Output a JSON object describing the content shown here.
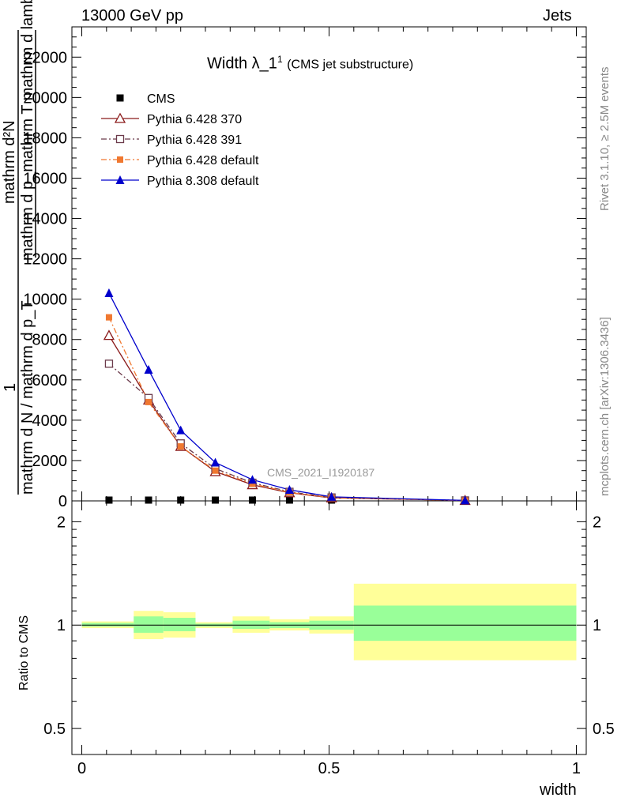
{
  "header": {
    "left": "13000 GeV pp",
    "right": "Jets"
  },
  "side_labels": {
    "rivet": "Rivet 3.1.10, ≥ 2.5M events",
    "mcplots": "mcplots.cern.ch [arXiv:1306.3436]"
  },
  "chart_data": [
    {
      "type": "line",
      "title_main": "Width λ_1",
      "title_sup": "1",
      "title_sub": "(CMS jet substructure)",
      "watermark": "CMS_2021_I1920187",
      "ylabel_numerator": "mathrm d²N",
      "ylabel_denominator": "mathrm d p_mathrm T mathrm d lambda",
      "ylabel_one": "1",
      "ylabel_frac": "mathrm d N / mathrm d p_T",
      "xlim": [
        -0.02,
        1.02
      ],
      "ylim": [
        0,
        23500
      ],
      "yticks": [
        0,
        2000,
        4000,
        6000,
        8000,
        10000,
        12000,
        14000,
        16000,
        18000,
        20000,
        22000
      ],
      "ytick_labels": [
        "0",
        "2000",
        "4000",
        "6000",
        "8000",
        "10000",
        "12000",
        "14000",
        "16000",
        "18000",
        "20000",
        "22000"
      ],
      "legend_position": "top-left",
      "series": [
        {
          "name": "CMS",
          "color": "#000000",
          "marker": "square-filled",
          "x": [
            0.055,
            0.135,
            0.2,
            0.27,
            0.345,
            0.42,
            0.505,
            0.775
          ],
          "y": [
            0,
            0,
            0,
            0,
            0,
            0,
            0,
            0
          ]
        },
        {
          "name": "Pythia 6.428 370",
          "color": "#8b1a1a",
          "marker": "triangle-open",
          "dash": "solid",
          "x": [
            0.055,
            0.135,
            0.2,
            0.27,
            0.345,
            0.42,
            0.505,
            0.775
          ],
          "y": [
            8200,
            5000,
            2700,
            1450,
            800,
            400,
            150,
            20
          ]
        },
        {
          "name": "Pythia 6.428 391",
          "color": "#6b3a4a",
          "marker": "square-open",
          "dash": "dashdot",
          "x": [
            0.055,
            0.135,
            0.2,
            0.27,
            0.345,
            0.42,
            0.505,
            0.775
          ],
          "y": [
            6800,
            5100,
            2850,
            1600,
            900,
            450,
            170,
            22
          ]
        },
        {
          "name": "Pythia 6.428 default",
          "color": "#f07830",
          "marker": "square-filled-small",
          "dash": "dashdot",
          "x": [
            0.055,
            0.135,
            0.2,
            0.27,
            0.345,
            0.42,
            0.505,
            0.775
          ],
          "y": [
            9100,
            4900,
            2700,
            1500,
            850,
            420,
            160,
            18
          ]
        },
        {
          "name": "Pythia 8.308 default",
          "color": "#0000cc",
          "marker": "triangle-filled",
          "dash": "solid",
          "x": [
            0.055,
            0.135,
            0.2,
            0.27,
            0.345,
            0.42,
            0.505,
            0.775
          ],
          "y": [
            10300,
            6500,
            3500,
            1900,
            1050,
            550,
            200,
            25
          ]
        }
      ]
    },
    {
      "type": "area",
      "ylabel": "Ratio to CMS",
      "xlabel": "width",
      "xlim": [
        -0.02,
        1.02
      ],
      "ylim": [
        0.42,
        2.3
      ],
      "log_y": true,
      "xtick_labels": [
        "0",
        "0.5",
        "1"
      ],
      "xticks": [
        0,
        0.5,
        1
      ],
      "ytick_labels": [
        "0.5",
        "1",
        "2"
      ],
      "yticks": [
        0.5,
        1,
        2
      ],
      "colors": {
        "stat": "#99ff99",
        "total": "#ffff99"
      },
      "bands": [
        {
          "x0": 0.0,
          "x1": 0.105,
          "total": [
            0.98,
            1.025
          ],
          "stat": [
            0.99,
            1.015
          ]
        },
        {
          "x0": 0.105,
          "x1": 0.165,
          "total": [
            0.91,
            1.1
          ],
          "stat": [
            0.95,
            1.06
          ]
        },
        {
          "x0": 0.165,
          "x1": 0.23,
          "total": [
            0.92,
            1.09
          ],
          "stat": [
            0.96,
            1.05
          ]
        },
        {
          "x0": 0.23,
          "x1": 0.305,
          "total": [
            0.98,
            1.02
          ],
          "stat": [
            0.99,
            1.01
          ]
        },
        {
          "x0": 0.305,
          "x1": 0.38,
          "total": [
            0.95,
            1.06
          ],
          "stat": [
            0.975,
            1.03
          ]
        },
        {
          "x0": 0.38,
          "x1": 0.46,
          "total": [
            0.965,
            1.04
          ],
          "stat": [
            0.98,
            1.02
          ]
        },
        {
          "x0": 0.46,
          "x1": 0.55,
          "total": [
            0.945,
            1.06
          ],
          "stat": [
            0.97,
            1.03
          ]
        },
        {
          "x0": 0.55,
          "x1": 1.0,
          "total": [
            0.79,
            1.32
          ],
          "stat": [
            0.9,
            1.14
          ]
        }
      ]
    }
  ]
}
